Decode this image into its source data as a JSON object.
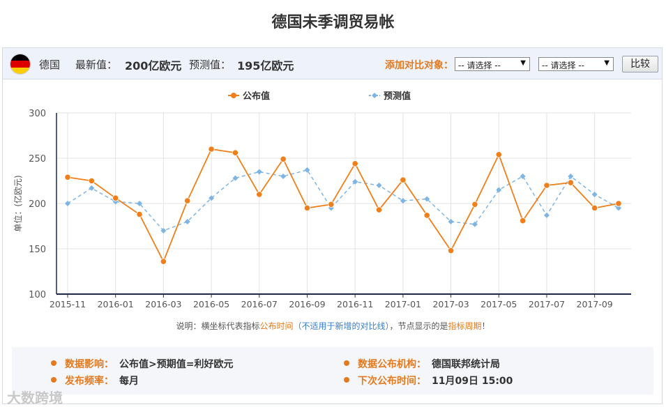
{
  "page": {
    "title": "德国未季调贸易帐"
  },
  "header": {
    "country": "德国",
    "latest_label": "最新值：",
    "latest_value": "200亿欧元",
    "forecast_label": "预测值：",
    "forecast_value": "195亿欧元",
    "compare_label": "添加对比对象：",
    "select1": "-- 请选择 --",
    "select2": "-- 请选择 --",
    "compare_button": "比较",
    "flag_colors": [
      "#000000",
      "#dd0000",
      "#ffce00"
    ]
  },
  "chart_data": {
    "type": "line",
    "ylabel": "单位：(亿欧元)",
    "ylim": [
      100,
      300
    ],
    "yticks": [
      100,
      150,
      200,
      250,
      300
    ],
    "x_tick_labels": [
      "2015-11",
      "2016-01",
      "2016-03",
      "2016-05",
      "2016-07",
      "2016-09",
      "2016-11",
      "2017-01",
      "2017-03",
      "2017-05",
      "2017-07",
      "2017-09"
    ],
    "x": [
      "2015-11",
      "2015-12",
      "2016-01",
      "2016-02",
      "2016-03",
      "2016-04",
      "2016-05",
      "2016-06",
      "2016-07",
      "2016-08",
      "2016-09",
      "2016-10",
      "2016-11",
      "2016-12",
      "2017-01",
      "2017-02",
      "2017-03",
      "2017-04",
      "2017-05",
      "2017-06",
      "2017-07",
      "2017-08",
      "2017-09",
      "2017-10"
    ],
    "series": [
      {
        "name": "公布值",
        "color": "#f07f1a",
        "style": "solid",
        "values": [
          229,
          225,
          206,
          188,
          136,
          203,
          260,
          256,
          210,
          249,
          195,
          199,
          244,
          193,
          226,
          187,
          148,
          199,
          254,
          181,
          220,
          223,
          195,
          200
        ]
      },
      {
        "name": "预测值",
        "color": "#7eb5e2",
        "style": "dashed",
        "values": [
          200,
          217,
          202,
          200,
          170,
          180,
          206,
          228,
          235,
          230,
          237,
          195,
          224,
          220,
          203,
          205,
          180,
          177,
          215,
          230,
          187,
          230,
          210,
          195
        ]
      }
    ],
    "grid": true,
    "legend_position": "top-center"
  },
  "note": {
    "prefix": "说明：横坐标代表指标",
    "highlight1": "公布时间",
    "paren": "（不适用于新增的对比线）",
    "middle": "，节点显示的是",
    "highlight2": "指标周期",
    "suffix": "！"
  },
  "info": {
    "impact_label": "数据影响：",
    "impact_value": "公布值>预期值=利好欧元",
    "agency_label": "数据公布机构：",
    "agency_value": "德国联邦统计局",
    "frequency_label": "发布频率：",
    "frequency_value": "每月",
    "next_label": "下次公布时间：",
    "next_value": "11月09日 15:00"
  },
  "watermark": "大数跨境"
}
